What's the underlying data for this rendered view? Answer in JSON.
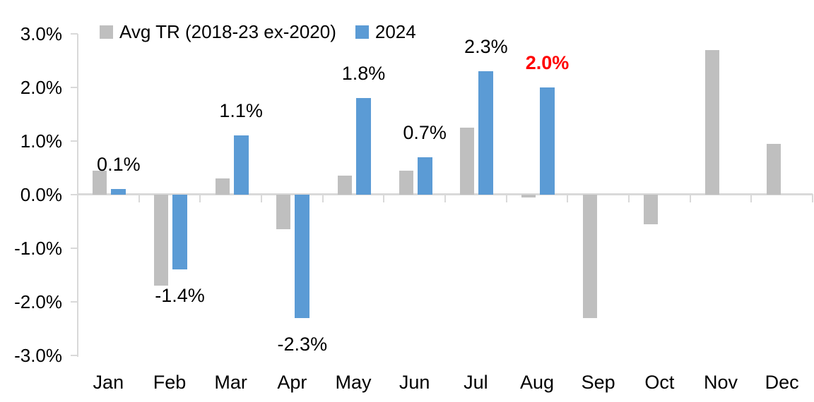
{
  "chart_data": {
    "type": "bar",
    "title": "",
    "categories": [
      "Jan",
      "Feb",
      "Mar",
      "Apr",
      "May",
      "Jun",
      "Jul",
      "Aug",
      "Sep",
      "Oct",
      "Nov",
      "Dec"
    ],
    "series": [
      {
        "name": "Avg TR (2018-23 ex-2020)",
        "color": "#BFBFBF",
        "values": [
          0.45,
          -1.7,
          0.3,
          -0.65,
          0.35,
          0.45,
          1.25,
          -0.05,
          -2.3,
          -0.55,
          2.7,
          0.95
        ]
      },
      {
        "name": "2024",
        "color": "#5B9BD5",
        "values": [
          0.1,
          -1.4,
          1.1,
          -2.3,
          1.8,
          0.7,
          2.3,
          2.0,
          null,
          null,
          null,
          null
        ]
      }
    ],
    "data_labels": [
      {
        "month": "Jan",
        "text": "0.1%",
        "color": "#000000",
        "bold": false
      },
      {
        "month": "Feb",
        "text": "-1.4%",
        "color": "#000000",
        "bold": false
      },
      {
        "month": "Mar",
        "text": "1.1%",
        "color": "#000000",
        "bold": false
      },
      {
        "month": "Apr",
        "text": "-2.3%",
        "color": "#000000",
        "bold": false
      },
      {
        "month": "May",
        "text": "1.8%",
        "color": "#000000",
        "bold": false
      },
      {
        "month": "Jun",
        "text": "0.7%",
        "color": "#000000",
        "bold": false
      },
      {
        "month": "Jul",
        "text": "2.3%",
        "color": "#000000",
        "bold": false
      },
      {
        "month": "Aug",
        "text": "2.0%",
        "color": "#FF0000",
        "bold": true
      }
    ],
    "y_axis": {
      "tick_labels": [
        "3.0%",
        "2.0%",
        "1.0%",
        "0.0%",
        "-1.0%",
        "-2.0%",
        "-3.0%"
      ],
      "tick_values": [
        3,
        2,
        1,
        0,
        -1,
        -2,
        -3
      ],
      "min": -3,
      "max": 3
    },
    "legend_position": "top",
    "grid": false,
    "axis_color": "#D9D9D9",
    "text_color": "#000000"
  }
}
